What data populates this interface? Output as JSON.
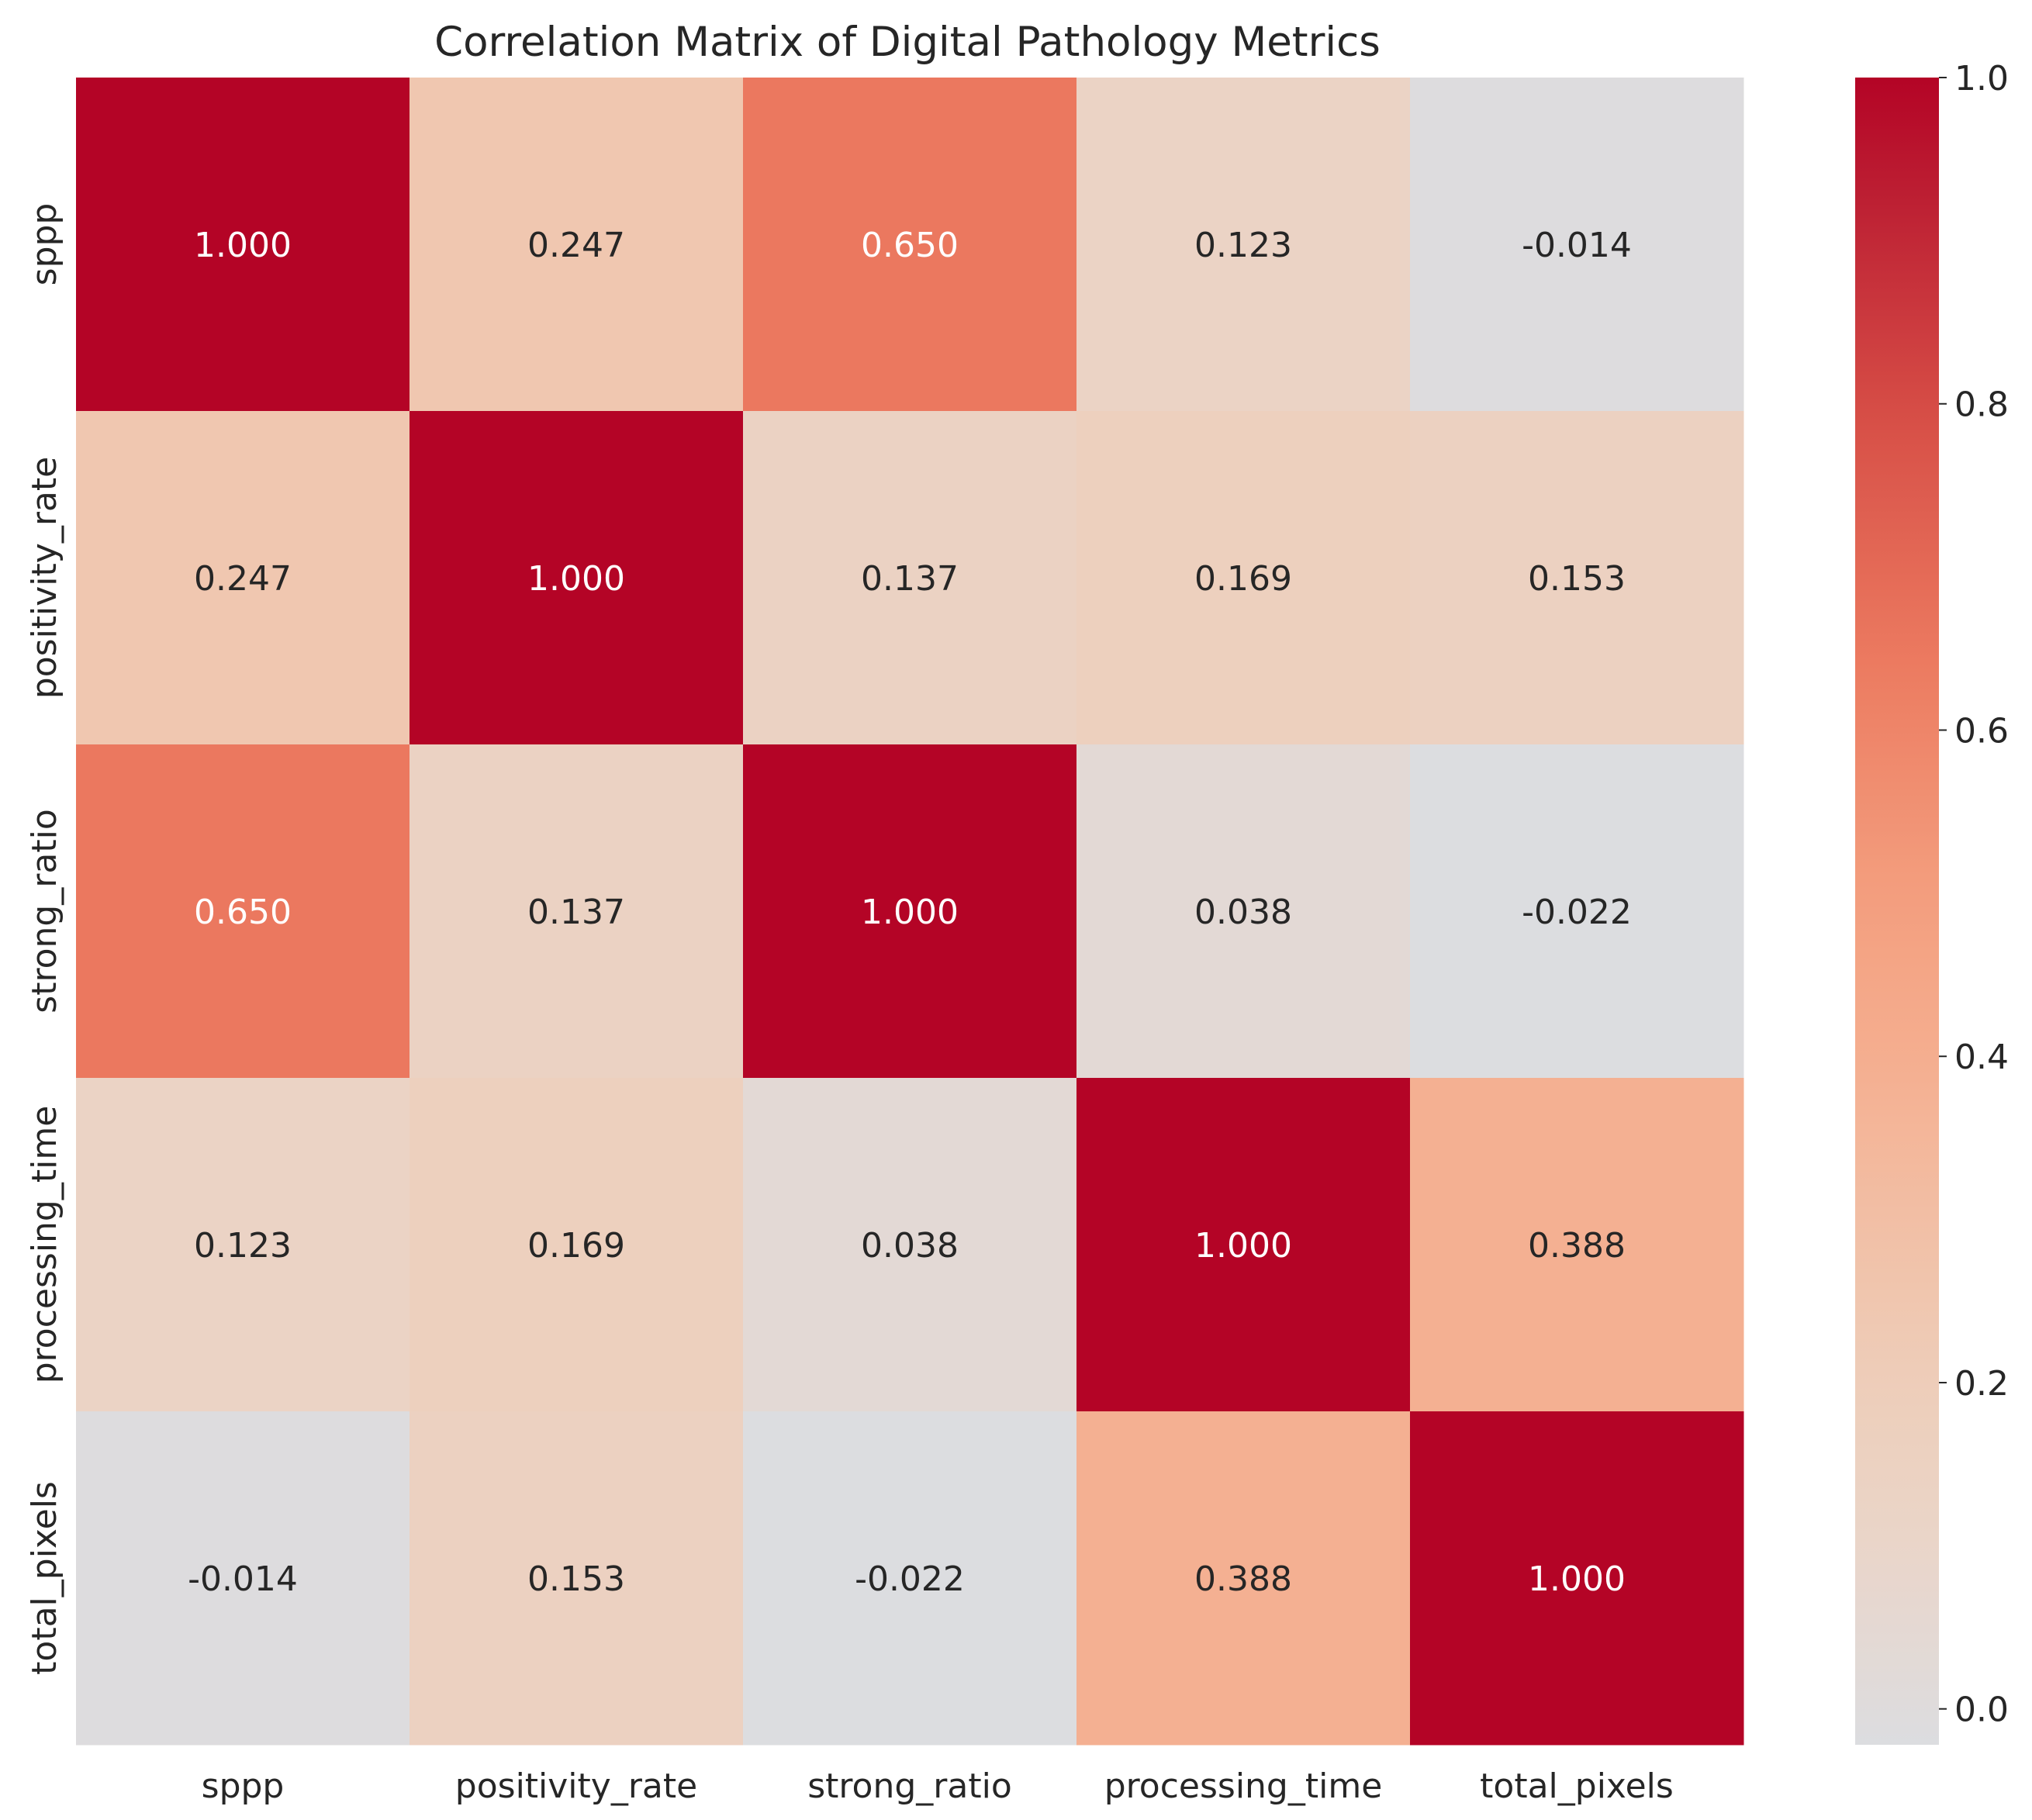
{
  "chart_data": {
    "type": "heatmap",
    "title": "Correlation Matrix of Digital Pathology Metrics",
    "xlabel": "",
    "ylabel": "",
    "x_categories": [
      "sppp",
      "positivity_rate",
      "strong_ratio",
      "processing_time",
      "total_pixels"
    ],
    "y_categories": [
      "sppp",
      "positivity_rate",
      "strong_ratio",
      "processing_time",
      "total_pixels"
    ],
    "values": [
      [
        1.0,
        0.247,
        0.65,
        0.123,
        -0.014
      ],
      [
        0.247,
        1.0,
        0.137,
        0.169,
        0.153
      ],
      [
        0.65,
        0.137,
        1.0,
        0.038,
        -0.022
      ],
      [
        0.123,
        0.169,
        0.038,
        1.0,
        0.388
      ],
      [
        -0.014,
        0.153,
        -0.022,
        0.388,
        1.0
      ]
    ],
    "cell_labels": [
      [
        "1.000",
        "0.247",
        "0.650",
        "0.123",
        "-0.014"
      ],
      [
        "0.247",
        "1.000",
        "0.137",
        "0.169",
        "0.153"
      ],
      [
        "0.650",
        "0.137",
        "1.000",
        "0.038",
        "-0.022"
      ],
      [
        "0.123",
        "0.169",
        "0.038",
        "1.000",
        "0.388"
      ],
      [
        "-0.014",
        "0.153",
        "-0.022",
        "0.388",
        "1.000"
      ]
    ],
    "colormap": "coolwarm",
    "color_range": [
      -0.022,
      1.0
    ],
    "colorbar": {
      "ticks": [
        0.0,
        0.2,
        0.4,
        0.6,
        0.8,
        1.0
      ],
      "tick_labels": [
        "0.0",
        "0.2",
        "0.4",
        "0.6",
        "0.8",
        "1.0"
      ]
    },
    "grid": false,
    "colors": {
      "low": "#dcdde0",
      "high": "#b40426",
      "text_dark": "#262626",
      "text_light": "#ffffff"
    }
  }
}
